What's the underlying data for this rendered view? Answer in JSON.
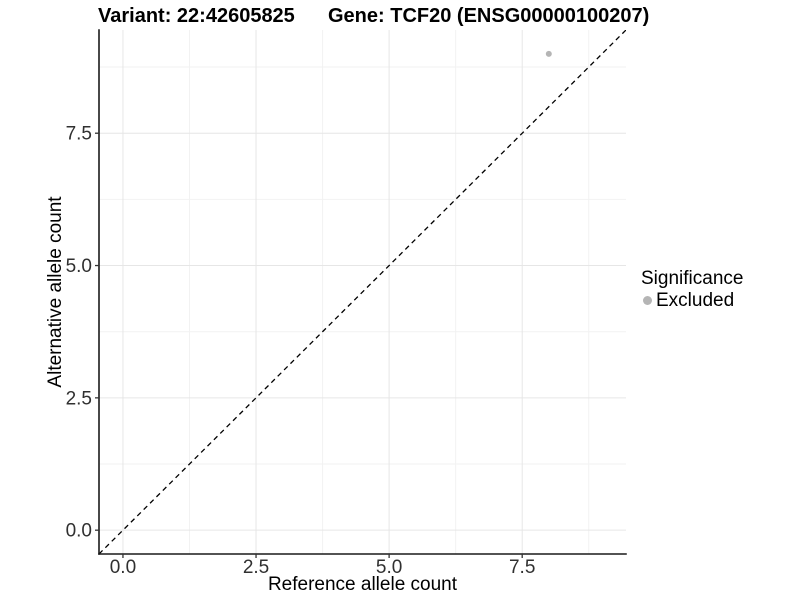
{
  "title": {
    "variant": "Variant: 22:42605825",
    "gene": "Gene: TCF20 (ENSG00000100207)"
  },
  "legend": {
    "title": "Significance",
    "items": [
      {
        "label": "Excluded",
        "color": "#b5b5b5"
      }
    ]
  },
  "colors": {
    "background": "#ffffff",
    "axis_line": "#1a1a1a",
    "tick_mark": "#333333",
    "tick_label": "#303030",
    "axis_title": "#000000",
    "grid_major": "#e6e6e6",
    "grid_minor": "#f2f2f2",
    "reference_line": "#000000",
    "point": "#b5b5b5"
  },
  "chart_data": {
    "type": "scatter",
    "title": "Variant: 22:42605825   Gene: TCF20 (ENSG00000100207)",
    "xlabel": "Reference allele count",
    "ylabel": "Alternative allele count",
    "xlim": [
      -0.45,
      9.45
    ],
    "ylim": [
      -0.45,
      9.45
    ],
    "x_major_ticks": [
      0,
      2.5,
      5,
      7.5
    ],
    "y_major_ticks": [
      0,
      2.5,
      5,
      7.5
    ],
    "x_tick_labels": [
      "0.0",
      "2.5",
      "5.0",
      "7.5"
    ],
    "y_tick_labels": [
      "0.0",
      "2.5",
      "5.0",
      "7.5"
    ],
    "x_minor_gridlines": [
      1.25,
      3.75,
      6.25,
      8.75
    ],
    "y_minor_gridlines": [
      1.25,
      3.75,
      6.25,
      8.75
    ],
    "grid": true,
    "legend_position": "right",
    "legend_title": "Significance",
    "reference_line": {
      "kind": "abline",
      "slope": 1,
      "intercept": 0,
      "style": "dashed",
      "color": "#000000"
    },
    "series": [
      {
        "name": "Excluded",
        "color": "#b5b5b5",
        "points": [
          {
            "x": 8,
            "y": 9
          }
        ]
      }
    ]
  }
}
